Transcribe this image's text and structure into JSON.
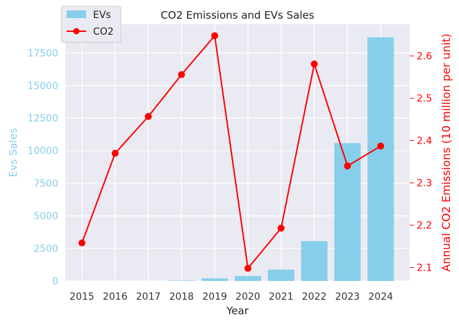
{
  "chart_data": {
    "type": "bar+line",
    "title": "CO2 Emissions and EVs Sales",
    "xlabel": "Year",
    "ylabel_left": "Evs Sales",
    "ylabel_right": "Annual CO2 Emissions (10 million per unit)",
    "categories": [
      "2015",
      "2016",
      "2017",
      "2018",
      "2019",
      "2020",
      "2021",
      "2022",
      "2023",
      "2024"
    ],
    "left_ylim": [
      0,
      19700
    ],
    "left_ticks": [
      0,
      2500,
      5000,
      7500,
      10000,
      12500,
      15000,
      17500
    ],
    "right_ylim": [
      2.068,
      2.675
    ],
    "right_ticks": [
      2.1,
      2.2,
      2.3,
      2.4,
      2.5,
      2.6
    ],
    "grid": true,
    "legend_placement": "top-left",
    "series": [
      {
        "name": "EVs",
        "type": "bar",
        "axis": "left",
        "color": "#87ceeb",
        "values": [
          0,
          0,
          0,
          30,
          200,
          380,
          870,
          3060,
          10580,
          18700
        ]
      },
      {
        "name": "CO2",
        "type": "line",
        "axis": "right",
        "color": "#ff0000",
        "values": [
          2.158,
          2.37,
          2.457,
          2.556,
          2.648,
          2.098,
          2.193,
          2.581,
          2.34,
          2.387
        ]
      }
    ],
    "colors": {
      "left_axis": "#87ceeb",
      "right_axis": "#ff0000",
      "background": "#eaeaf2",
      "grid": "#ffffff"
    }
  }
}
